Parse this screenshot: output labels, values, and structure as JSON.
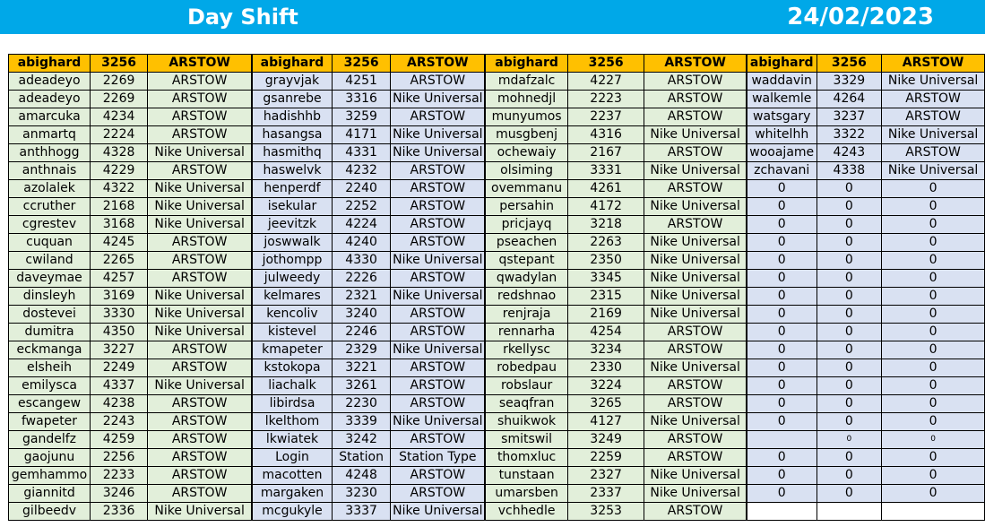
{
  "banner": {
    "title": "Day Shift",
    "date": "24/02/2023"
  },
  "header_group": [
    "abighard",
    "3256",
    "ARSTOW"
  ],
  "groups": [
    {
      "rows": [
        [
          "adeadeyo",
          "2269",
          "ARSTOW"
        ],
        [
          "adeadeyo",
          "2269",
          "ARSTOW"
        ],
        [
          "amarcuka",
          "4234",
          "ARSTOW"
        ],
        [
          "anmartq",
          "2224",
          "ARSTOW"
        ],
        [
          "anthhogg",
          "4328",
          "Nike Universal"
        ],
        [
          "anthnais",
          "4229",
          "ARSTOW"
        ],
        [
          "azolalek",
          "4322",
          "Nike Universal"
        ],
        [
          "ccruther",
          "2168",
          "Nike Universal"
        ],
        [
          "cgrestev",
          "3168",
          "Nike Universal"
        ],
        [
          "cuquan",
          "4245",
          "ARSTOW"
        ],
        [
          "cwiland",
          "2265",
          "ARSTOW"
        ],
        [
          "daveymae",
          "4257",
          "ARSTOW"
        ],
        [
          "dinsleyh",
          "3169",
          "Nike Universal"
        ],
        [
          "dostevei",
          "3330",
          "Nike Universal"
        ],
        [
          "dumitra",
          "4350",
          "Nike Universal"
        ],
        [
          "eckmanga",
          "3227",
          "ARSTOW"
        ],
        [
          "elsheih",
          "2249",
          "ARSTOW"
        ],
        [
          "emilysca",
          "4337",
          "Nike Universal"
        ],
        [
          "escangew",
          "4238",
          "ARSTOW"
        ],
        [
          "fwapeter",
          "2243",
          "ARSTOW"
        ],
        [
          "gandelfz",
          "4259",
          "ARSTOW"
        ],
        [
          "gaojunu",
          "2256",
          "ARSTOW"
        ],
        [
          "gemhammo",
          "2233",
          "ARSTOW"
        ],
        [
          "giannitd",
          "3246",
          "ARSTOW"
        ],
        [
          "gilbeedv",
          "2336",
          "Nike Universal"
        ]
      ]
    },
    {
      "rows": [
        [
          "grayvjak",
          "4251",
          "ARSTOW"
        ],
        [
          "gsanrebe",
          "3316",
          "Nike Universal"
        ],
        [
          "hadishhb",
          "3259",
          "ARSTOW"
        ],
        [
          "hasangsa",
          "4171",
          "Nike Universal"
        ],
        [
          "hasmithq",
          "4331",
          "Nike Universal"
        ],
        [
          "haswelvk",
          "4232",
          "ARSTOW"
        ],
        [
          "henperdf",
          "2240",
          "ARSTOW"
        ],
        [
          "isekular",
          "2252",
          "ARSTOW"
        ],
        [
          "jeevitzk",
          "4224",
          "ARSTOW"
        ],
        [
          "joswwalk",
          "4240",
          "ARSTOW"
        ],
        [
          "jothompp",
          "4330",
          "Nike Universal"
        ],
        [
          "julweedy",
          "2226",
          "ARSTOW"
        ],
        [
          "kelmares",
          "2321",
          "Nike Universal"
        ],
        [
          "kencoliv",
          "3240",
          "ARSTOW"
        ],
        [
          "kistevel",
          "2246",
          "ARSTOW"
        ],
        [
          "kmapeter",
          "2329",
          "Nike Universal"
        ],
        [
          "kstokopa",
          "3221",
          "ARSTOW"
        ],
        [
          "liachalk",
          "3261",
          "ARSTOW"
        ],
        [
          "libirdsa",
          "2230",
          "ARSTOW"
        ],
        [
          "lkelthom",
          "3339",
          "Nike Universal"
        ],
        [
          "lkwiatek",
          "3242",
          "ARSTOW"
        ],
        [
          "Login",
          "Station",
          "Station Type"
        ],
        [
          "macotten",
          "4248",
          "ARSTOW"
        ],
        [
          "margaken",
          "3230",
          "ARSTOW"
        ],
        [
          "mcgukyle",
          "3337",
          "Nike Universal"
        ]
      ]
    },
    {
      "rows": [
        [
          "mdafzalc",
          "4227",
          "ARSTOW"
        ],
        [
          "mohnedjl",
          "2223",
          "ARSTOW"
        ],
        [
          "munyumos",
          "2237",
          "ARSTOW"
        ],
        [
          "musgbenj",
          "4316",
          "Nike Universal"
        ],
        [
          "ochewaiy",
          "2167",
          "ARSTOW"
        ],
        [
          "olsiming",
          "3331",
          "Nike Universal"
        ],
        [
          "ovemmanu",
          "4261",
          "ARSTOW"
        ],
        [
          "persahin",
          "4172",
          "Nike Universal"
        ],
        [
          "pricjayq",
          "3218",
          "ARSTOW"
        ],
        [
          "pseachen",
          "2263",
          "Nike Universal"
        ],
        [
          "qstepant",
          "2350",
          "Nike Universal"
        ],
        [
          "qwadylan",
          "3345",
          "Nike Universal"
        ],
        [
          "redshnao",
          "2315",
          "Nike Universal"
        ],
        [
          "renjraja",
          "2169",
          "Nike Universal"
        ],
        [
          "rennarha",
          "4254",
          "ARSTOW"
        ],
        [
          "rkellysc",
          "3234",
          "ARSTOW"
        ],
        [
          "robedpau",
          "2330",
          "Nike Universal"
        ],
        [
          "robslaur",
          "3224",
          "ARSTOW"
        ],
        [
          "seaqfran",
          "3265",
          "ARSTOW"
        ],
        [
          "shuikwok",
          "4127",
          "Nike Universal"
        ],
        [
          "smitswil",
          "3249",
          "ARSTOW"
        ],
        [
          "thomxluc",
          "2259",
          "ARSTOW"
        ],
        [
          "tunstaan",
          "2327",
          "Nike Universal"
        ],
        [
          "umarsben",
          "2337",
          "Nike Universal"
        ],
        [
          "vchhedle",
          "3253",
          "ARSTOW"
        ]
      ]
    },
    {
      "rows": [
        [
          "waddavin",
          "3329",
          "Nike Universal"
        ],
        [
          "walkemle",
          "4264",
          "ARSTOW"
        ],
        [
          "watsgary",
          "3237",
          "ARSTOW"
        ],
        [
          "whitelhh",
          "3322",
          "Nike Universal"
        ],
        [
          "wooajame",
          "4243",
          "ARSTOW"
        ],
        [
          "zchavani",
          "4338",
          "Nike Universal"
        ],
        [
          "0",
          "0",
          "0"
        ],
        [
          "0",
          "0",
          "0"
        ],
        [
          "0",
          "0",
          "0"
        ],
        [
          "0",
          "0",
          "0"
        ],
        [
          "0",
          "0",
          "0"
        ],
        [
          "0",
          "0",
          "0"
        ],
        [
          "0",
          "0",
          "0"
        ],
        [
          "0",
          "0",
          "0"
        ],
        [
          "0",
          "0",
          "0"
        ],
        [
          "0",
          "0",
          "0"
        ],
        [
          "0",
          "0",
          "0"
        ],
        [
          "0",
          "0",
          "0"
        ],
        [
          "0",
          "0",
          "0"
        ],
        [
          "0",
          "0",
          "0"
        ],
        [
          "",
          "0",
          "0"
        ],
        [
          "0",
          "0",
          "0"
        ],
        [
          "0",
          "0",
          "0"
        ],
        [
          "0",
          "0",
          "0"
        ],
        [
          "",
          "",
          ""
        ]
      ]
    }
  ],
  "colors": {
    "banner": "#00a8e8",
    "header": "#ffc000",
    "green_col": "#e2efda",
    "blue_col": "#d9e1f2"
  }
}
